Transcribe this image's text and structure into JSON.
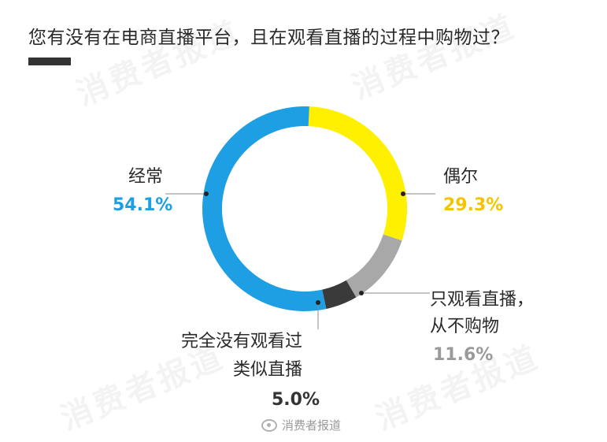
{
  "title": "您有没有在电商直播平台，且在观看直播的过程中购物过？",
  "watermark_text": "消费者报道",
  "credit": "消费者报道",
  "colors": {
    "blue": "#1e9fe3",
    "yellow": "#fff000",
    "gray": "#a8a8a8",
    "dark": "#3a3a3a",
    "pct_gray": "#9a9a9a"
  },
  "chart_data": {
    "type": "pie",
    "style": "donut",
    "title": "您有没有在电商直播平台，且在观看直播的过程中购物过？",
    "slices": [
      {
        "label": "经常",
        "value": 54.1,
        "display": "54.1%",
        "color": "#1e9fe3"
      },
      {
        "label": "偶尔",
        "value": 29.3,
        "display": "29.3%",
        "color": "#fff000"
      },
      {
        "label": "只观看直播，从不购物",
        "label_lines": [
          "只观看直播，",
          "从不购物"
        ],
        "value": 11.6,
        "display": "11.6%",
        "color": "#a8a8a8"
      },
      {
        "label": "完全没有观看过类似直播",
        "label_lines": [
          "完全没有观看过",
          "类似直播"
        ],
        "value": 5.0,
        "display": "5.0%",
        "color": "#3a3a3a"
      }
    ]
  }
}
